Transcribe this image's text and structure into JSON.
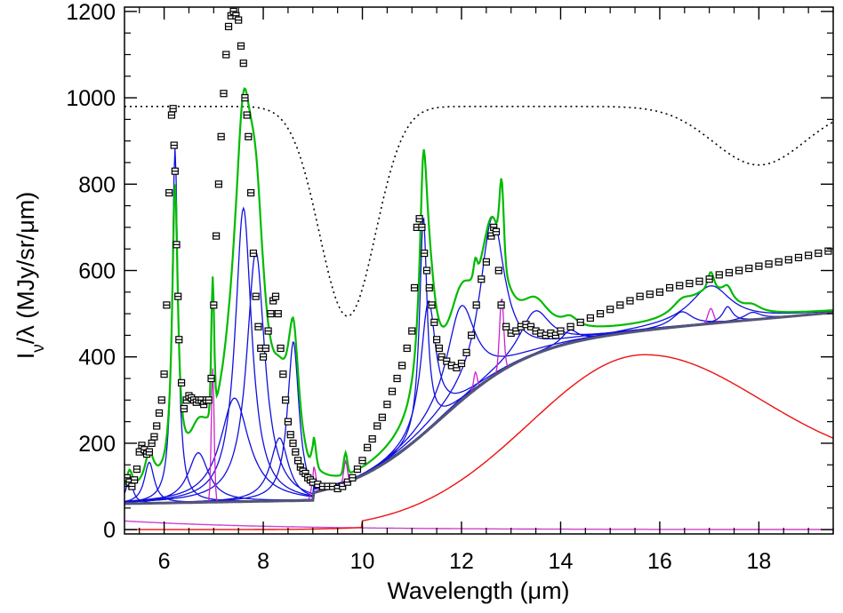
{
  "chart_data": {
    "type": "line",
    "xlabel": "Wavelength (μm)",
    "ylabel_parts": {
      "main": "I",
      "sub": "ν",
      "rest": "/λ (MJy/sr/μm)"
    },
    "xlim": [
      5.2,
      19.5
    ],
    "ylim": [
      -10,
      1210
    ],
    "x_ticks": [
      6,
      8,
      10,
      12,
      14,
      16,
      18
    ],
    "x_tick_labels": [
      "6",
      "8",
      "10",
      "12",
      "14",
      "16",
      "18"
    ],
    "x_minor_step": 0.5,
    "y_ticks": [
      0,
      200,
      400,
      600,
      800,
      1000,
      1200
    ],
    "y_tick_labels": [
      "0",
      "200",
      "400",
      "600",
      "800",
      "1000",
      "1200"
    ],
    "y_minor_step": 50,
    "grid": false,
    "colors": {
      "data": "#000000",
      "fit": "#00bb00",
      "pah": "#1010dd",
      "lines": "#cc22cc",
      "continuum": "#ee1111",
      "total_continuum": "#555577",
      "extinction": "#000000"
    },
    "observed_x": [
      5.25,
      5.3,
      5.35,
      5.4,
      5.45,
      5.5,
      5.55,
      5.6,
      5.65,
      5.7,
      5.75,
      5.8,
      5.85,
      5.9,
      5.95,
      6.0,
      6.05,
      6.1,
      6.15,
      6.18,
      6.2,
      6.22,
      6.25,
      6.28,
      6.3,
      6.35,
      6.4,
      6.45,
      6.5,
      6.55,
      6.6,
      6.65,
      6.7,
      6.75,
      6.8,
      6.85,
      6.9,
      6.95,
      7.0,
      7.05,
      7.1,
      7.15,
      7.2,
      7.25,
      7.3,
      7.35,
      7.4,
      7.45,
      7.5,
      7.55,
      7.6,
      7.63,
      7.67,
      7.7,
      7.75,
      7.8,
      7.85,
      7.9,
      7.95,
      8.0,
      8.05,
      8.1,
      8.15,
      8.2,
      8.25,
      8.3,
      8.35,
      8.4,
      8.45,
      8.5,
      8.55,
      8.6,
      8.65,
      8.7,
      8.75,
      8.8,
      8.85,
      8.9,
      8.95,
      9.0,
      9.1,
      9.2,
      9.3,
      9.4,
      9.5,
      9.6,
      9.7,
      9.8,
      9.9,
      10.0,
      10.1,
      10.2,
      10.3,
      10.4,
      10.5,
      10.6,
      10.7,
      10.8,
      10.9,
      11.0,
      11.05,
      11.1,
      11.15,
      11.2,
      11.25,
      11.3,
      11.35,
      11.4,
      11.45,
      11.5,
      11.55,
      11.6,
      11.7,
      11.8,
      11.9,
      12.0,
      12.1,
      12.2,
      12.3,
      12.4,
      12.5,
      12.6,
      12.65,
      12.7,
      12.75,
      12.8,
      12.9,
      13.0,
      13.1,
      13.2,
      13.3,
      13.4,
      13.5,
      13.6,
      13.7,
      13.8,
      13.9,
      14.0,
      14.2,
      14.4,
      14.6,
      14.8,
      15.0,
      15.2,
      15.4,
      15.6,
      15.8,
      16.0,
      16.2,
      16.4,
      16.6,
      16.8,
      17.0,
      17.2,
      17.4,
      17.6,
      17.8,
      18.0,
      18.2,
      18.4,
      18.6,
      18.8,
      19.0,
      19.2,
      19.4
    ],
    "observed_y": [
      120,
      110,
      100,
      115,
      140,
      180,
      195,
      185,
      175,
      180,
      200,
      215,
      240,
      270,
      300,
      360,
      520,
      780,
      960,
      975,
      890,
      830,
      660,
      540,
      440,
      340,
      280,
      300,
      310,
      305,
      300,
      295,
      300,
      300,
      290,
      300,
      300,
      350,
      520,
      680,
      800,
      910,
      1010,
      1100,
      1165,
      1190,
      1200,
      1190,
      1180,
      1120,
      1080,
      1000,
      960,
      910,
      780,
      640,
      540,
      470,
      420,
      400,
      420,
      460,
      500,
      530,
      540,
      500,
      420,
      360,
      300,
      250,
      220,
      200,
      180,
      160,
      145,
      135,
      130,
      120,
      115,
      110,
      105,
      100,
      100,
      100,
      95,
      100,
      110,
      120,
      140,
      160,
      190,
      210,
      240,
      260,
      290,
      320,
      350,
      380,
      420,
      460,
      560,
      700,
      720,
      700,
      640,
      600,
      560,
      520,
      480,
      440,
      420,
      400,
      390,
      380,
      375,
      385,
      410,
      450,
      520,
      580,
      620,
      680,
      700,
      690,
      600,
      520,
      470,
      455,
      460,
      470,
      475,
      470,
      460,
      455,
      450,
      455,
      450,
      460,
      470,
      480,
      490,
      500,
      510,
      520,
      530,
      540,
      545,
      550,
      560,
      565,
      570,
      575,
      580,
      590,
      595,
      600,
      605,
      610,
      615,
      620,
      625,
      630,
      635,
      640,
      645
    ]
  }
}
